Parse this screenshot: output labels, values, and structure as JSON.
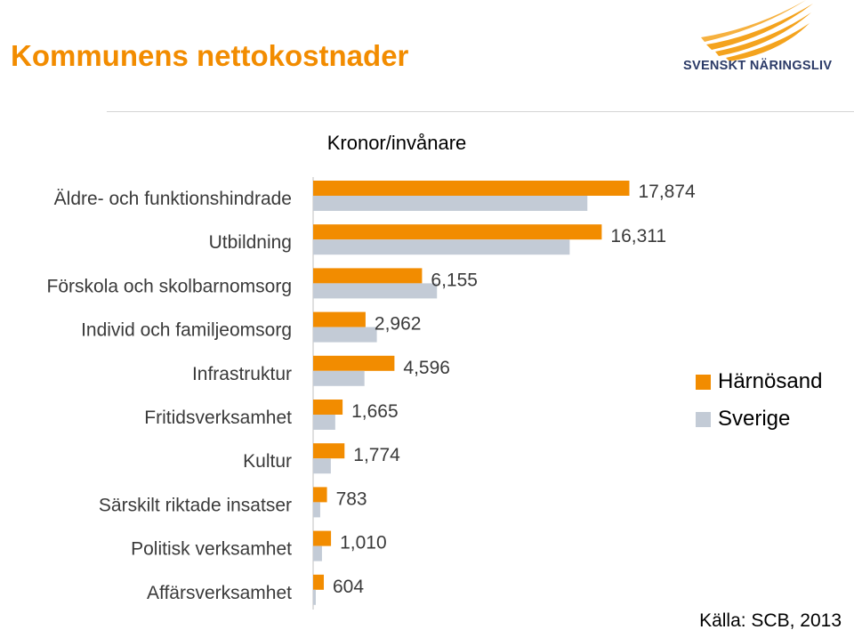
{
  "header": {
    "title": "Kommunens nettokostnader",
    "logo_text": "SVENSKT NÄRINGSLIV"
  },
  "source": "Källa: SCB, 2013",
  "colors": {
    "title": "#f28c00",
    "series_harnosand": "#f28c00",
    "series_sverige": "#c3cbd6",
    "logo_navy": "#2b3a67",
    "logo_orange": "#f4a31d"
  },
  "chart_data": {
    "type": "bar",
    "orientation": "horizontal",
    "title": "Kronor/invånare",
    "categories": [
      "Äldre- och funktionshindrade",
      "Utbildning",
      "Förskola och skolbarnomsorg",
      "Individ och familjeomsorg",
      "Infrastruktur",
      "Fritidsverksamhet",
      "Kultur",
      "Särskilt riktade insatser",
      "Politisk verksamhet",
      "Affärsverksamhet"
    ],
    "series": [
      {
        "name": "Härnösand",
        "values": [
          17874,
          16311,
          6155,
          2962,
          4596,
          1665,
          1774,
          783,
          1010,
          604
        ],
        "labels": [
          "17,874",
          "16,311",
          "6,155",
          "2,962",
          "4,596",
          "1,665",
          "1,774",
          "783",
          "1,010",
          "604"
        ]
      },
      {
        "name": "Sverige",
        "values": [
          15500,
          14500,
          7000,
          3600,
          2900,
          1250,
          1000,
          400,
          500,
          150
        ]
      }
    ],
    "xlim": [
      0,
      18000
    ],
    "legend_position": "right",
    "grid": false,
    "axis_line": "left"
  }
}
